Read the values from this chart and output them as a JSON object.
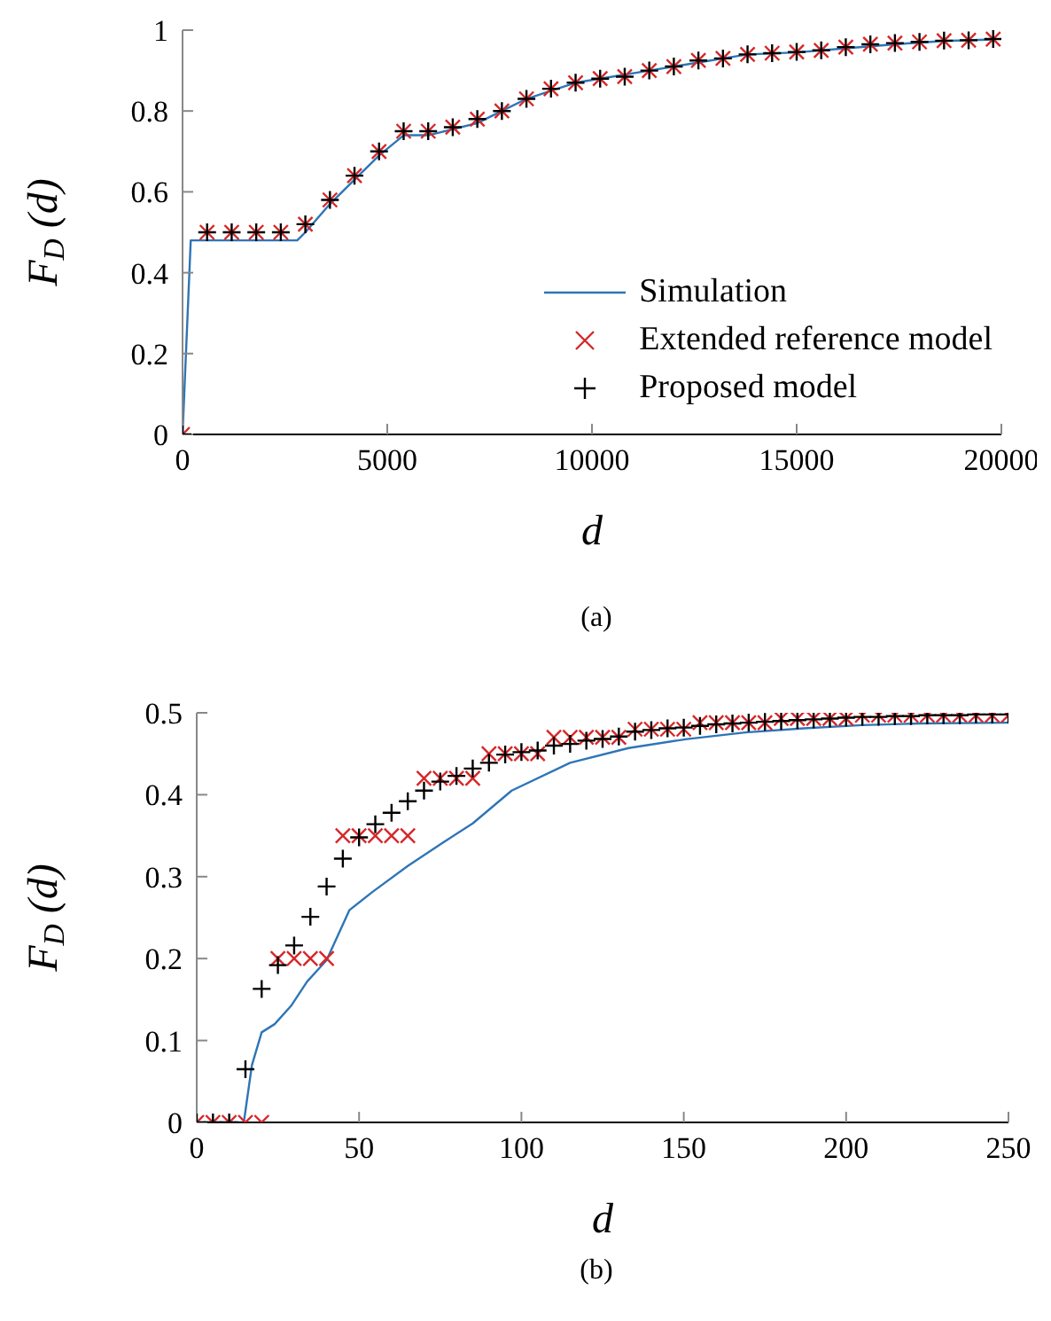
{
  "chart_data": [
    {
      "type": "scatter",
      "xlabel": "d",
      "ylabel": "F$_{D}$ (d)",
      "annotations": [
        "(a)"
      ],
      "xlim": [
        0,
        20000
      ],
      "xticks": [
        0,
        5000,
        10000,
        15000,
        20000
      ],
      "ylim": [
        0,
        1
      ],
      "yticks": [
        0,
        0.2,
        0.4,
        0.6,
        0.8,
        1
      ],
      "grid": false,
      "legend": "bottom right",
      "series": [
        {
          "name": "Simulation",
          "type": "line",
          "color": "#2e75b6",
          "line_style": "solid",
          "marker": "none",
          "x": [
            0,
            200,
            2800,
            3000,
            3600,
            4200,
            4800,
            5400,
            6000,
            6600,
            7200,
            7800,
            8400,
            9000,
            9600,
            10200,
            11400,
            12600,
            13800,
            15000,
            16200,
            17400,
            18600,
            19800
          ],
          "values": [
            0,
            0.48,
            0.48,
            0.5,
            0.57,
            0.63,
            0.69,
            0.74,
            0.74,
            0.755,
            0.77,
            0.8,
            0.83,
            0.85,
            0.87,
            0.88,
            0.9,
            0.92,
            0.94,
            0.945,
            0.955,
            0.965,
            0.973,
            0.977
          ]
        },
        {
          "name": "Extended reference model",
          "color": "#d62728",
          "marker": "cross",
          "x": [
            0,
            600,
            1200,
            1800,
            2400,
            3000,
            3600,
            4200,
            4800,
            5400,
            6000,
            6600,
            7200,
            7800,
            8400,
            9000,
            9600,
            10200,
            10800,
            11400,
            12000,
            12600,
            13200,
            13800,
            14400,
            15000,
            15600,
            16200,
            16800,
            17400,
            18000,
            18600,
            19200,
            19800
          ],
          "values": [
            0,
            0.5,
            0.5,
            0.5,
            0.5,
            0.52,
            0.58,
            0.64,
            0.7,
            0.75,
            0.75,
            0.76,
            0.78,
            0.8,
            0.83,
            0.855,
            0.87,
            0.88,
            0.885,
            0.9,
            0.91,
            0.925,
            0.93,
            0.94,
            0.943,
            0.946,
            0.95,
            0.958,
            0.965,
            0.968,
            0.971,
            0.974,
            0.975,
            0.978
          ]
        },
        {
          "name": "Proposed model",
          "color": "#000000",
          "marker": "plus",
          "x": [
            0,
            600,
            1200,
            1800,
            2400,
            3000,
            3600,
            4200,
            4800,
            5400,
            6000,
            6600,
            7200,
            7800,
            8400,
            9000,
            9600,
            10200,
            10800,
            11400,
            12000,
            12600,
            13200,
            13800,
            14400,
            15000,
            15600,
            16200,
            16800,
            17400,
            18000,
            18600,
            19200,
            19800
          ],
          "values": [
            0,
            0.5,
            0.5,
            0.5,
            0.5,
            0.52,
            0.58,
            0.64,
            0.7,
            0.75,
            0.75,
            0.76,
            0.78,
            0.8,
            0.83,
            0.855,
            0.87,
            0.88,
            0.885,
            0.9,
            0.91,
            0.925,
            0.93,
            0.94,
            0.943,
            0.946,
            0.95,
            0.958,
            0.965,
            0.968,
            0.971,
            0.974,
            0.975,
            0.978
          ]
        }
      ]
    },
    {
      "type": "scatter",
      "xlabel": "d",
      "ylabel": "F$_{D}$ (d)",
      "annotations": [
        "(b)"
      ],
      "xlim": [
        0,
        250
      ],
      "xticks": [
        0,
        50,
        100,
        150,
        200,
        250
      ],
      "ylim": [
        0,
        0.5
      ],
      "yticks": [
        0,
        0.1,
        0.2,
        0.3,
        0.4,
        0.5
      ],
      "grid": false,
      "legend": false,
      "series": [
        {
          "type": "line",
          "color": "#2e75b6",
          "line_style": "solid",
          "marker": "none",
          "x": [
            0,
            14.5,
            17,
            20,
            24,
            29,
            34,
            40,
            47,
            54,
            65,
            76,
            85,
            97,
            115,
            133,
            151,
            169,
            187,
            205,
            223,
            250
          ],
          "values": [
            0,
            0,
            0.07,
            0.11,
            0.12,
            0.142,
            0.172,
            0.198,
            0.259,
            0.281,
            0.313,
            0.342,
            0.365,
            0.405,
            0.439,
            0.457,
            0.468,
            0.476,
            0.481,
            0.485,
            0.487,
            0.488
          ]
        },
        {
          "color": "#d62728",
          "marker": "cross",
          "x": [
            0,
            5,
            10,
            15,
            20,
            25,
            30,
            35,
            40,
            45,
            50,
            55,
            60,
            65,
            70,
            75,
            80,
            85,
            90,
            95,
            100,
            105,
            110,
            115,
            120,
            125,
            130,
            135,
            140,
            145,
            150,
            155,
            160,
            165,
            170,
            175,
            180,
            185,
            190,
            195,
            200,
            205,
            210,
            215,
            220,
            225,
            230,
            235,
            240,
            245,
            250
          ],
          "values": [
            0,
            0,
            0,
            0,
            0,
            0.2,
            0.2,
            0.2,
            0.2,
            0.35,
            0.35,
            0.35,
            0.35,
            0.35,
            0.42,
            0.42,
            0.42,
            0.42,
            0.45,
            0.45,
            0.45,
            0.45,
            0.47,
            0.47,
            0.47,
            0.47,
            0.47,
            0.48,
            0.48,
            0.48,
            0.48,
            0.488,
            0.488,
            0.488,
            0.488,
            0.488,
            0.493,
            0.493,
            0.493,
            0.493,
            0.493,
            0.497,
            0.497,
            0.497,
            0.497,
            0.497,
            0.497,
            0.497,
            0.497,
            0.497,
            0.497
          ]
        },
        {
          "color": "#000000",
          "marker": "plus",
          "x": [
            0,
            5,
            10,
            15,
            20,
            25,
            30,
            35,
            40,
            45,
            50,
            55,
            60,
            65,
            70,
            75,
            80,
            85,
            90,
            95,
            100,
            105,
            110,
            115,
            120,
            125,
            130,
            135,
            140,
            145,
            150,
            155,
            160,
            165,
            170,
            175,
            180,
            185,
            190,
            195,
            200,
            205,
            210,
            215,
            220,
            225,
            230,
            235,
            240,
            245,
            250
          ],
          "values": [
            0,
            0,
            0,
            0.065,
            0.163,
            0.192,
            0.216,
            0.251,
            0.288,
            0.322,
            0.348,
            0.364,
            0.378,
            0.392,
            0.405,
            0.416,
            0.423,
            0.432,
            0.439,
            0.449,
            0.452,
            0.454,
            0.46,
            0.462,
            0.466,
            0.468,
            0.471,
            0.477,
            0.479,
            0.481,
            0.482,
            0.484,
            0.486,
            0.487,
            0.488,
            0.489,
            0.49,
            0.491,
            0.492,
            0.493,
            0.494,
            0.495,
            0.495,
            0.496,
            0.496,
            0.497,
            0.497,
            0.497,
            0.498,
            0.498,
            0.498
          ]
        }
      ]
    }
  ]
}
